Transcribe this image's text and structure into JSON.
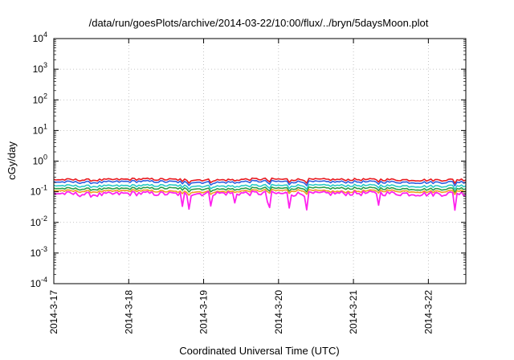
{
  "chart_data": {
    "type": "line",
    "title": "/data/run/goesPlots/archive/2014-03-22/10:00/flux/../bryn/5daysMoon.plot",
    "xlabel": "Coordinated Universal Time (UTC)",
    "ylabel": "cGy/day",
    "x_range": [
      "2014-03-17",
      "2014-03-22 12:00"
    ],
    "xticks": [
      "2014-3-17",
      "2014-3-18",
      "2014-3-19",
      "2014-3-20",
      "2014-3-21",
      "2014-3-22"
    ],
    "ylim": [
      0.0001,
      10000
    ],
    "yscale": "log",
    "ytick_bases": [
      "10",
      "10",
      "10",
      "10",
      "10",
      "10",
      "10",
      "10",
      "10"
    ],
    "ytick_exponents": [
      "-4",
      "-3",
      "-2",
      "-1",
      "0",
      "1",
      "2",
      "3",
      "4"
    ],
    "grid": true,
    "legend": "none",
    "series": [
      {
        "color": "#e8191f",
        "values": [
          0.25,
          0.24,
          0.26,
          0.25,
          0.24,
          0.26,
          0.25,
          0.25,
          0.25,
          0.24,
          0.25
        ]
      },
      {
        "color": "#2f5fe0",
        "values": [
          0.21,
          0.2,
          0.22,
          0.21,
          0.2,
          0.22,
          0.21,
          0.21,
          0.21,
          0.2,
          0.21
        ]
      },
      {
        "color": "#29c9c6",
        "values": [
          0.16,
          0.15,
          0.16,
          0.16,
          0.15,
          0.16,
          0.16,
          0.16,
          0.16,
          0.15,
          0.16
        ]
      },
      {
        "color": "#2aa04a",
        "values": [
          0.13,
          0.12,
          0.13,
          0.13,
          0.12,
          0.13,
          0.13,
          0.13,
          0.13,
          0.12,
          0.13
        ]
      },
      {
        "color": "#f0a020",
        "values": [
          0.11,
          0.1,
          0.11,
          0.1,
          0.1,
          0.11,
          0.11,
          0.1,
          0.11,
          0.1,
          0.11
        ]
      },
      {
        "color": "#ff22ee",
        "values": [
          0.09,
          0.08,
          0.09,
          0.085,
          0.09,
          0.09,
          0.085,
          0.09,
          0.09,
          0.085,
          0.09
        ]
      }
    ]
  }
}
